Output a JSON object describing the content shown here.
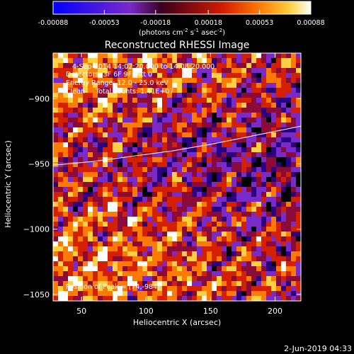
{
  "chart_data": {
    "type": "heatmap",
    "title": "Reconstructed RHESSI Image",
    "xlabel": "Heliocentric X (arcsec)",
    "ylabel": "Heliocentric Y (arcsec)",
    "xlim": [
      28,
      220
    ],
    "ylim": [
      -1055,
      -865
    ],
    "xticks": [
      50,
      100,
      150,
      200
    ],
    "yticks": [
      -900,
      -950,
      -1000,
      -1050
    ],
    "colorbar": {
      "min": -0.00088,
      "max": 0.00088,
      "tick_values": [
        -0.00088,
        -0.00053,
        -0.00018,
        0.00018,
        0.00053,
        0.00088
      ],
      "tick_labels": [
        "-0.00088",
        "-0.00053",
        "-0.00018",
        "0.00018",
        "0.00053",
        "0.00088"
      ],
      "unit_prefix": "(photons cm",
      "unit_exp1": "-2",
      "unit_mid": " s",
      "unit_exp2": "-1",
      "unit_mid2": " asec",
      "unit_exp3": "-2",
      "unit_suffix": ")"
    },
    "annotations": {
      "time_range": "4-Sep-2014 14:02:20.000 to 14:08:20.000",
      "detectors": "Detectors: 3F 6F 9F, Att 0",
      "energy": "Energy Range: 12.0 - 25.0 keV",
      "method": "Clean     Total counts: 1.41E+07",
      "peak": "Position of Peak = [74,-984]"
    },
    "limb_curve": {
      "x": [
        28,
        60,
        90,
        120,
        150,
        180,
        200,
        220
      ],
      "y": [
        -951,
        -948,
        -944,
        -940,
        -935,
        -929,
        -925,
        -921
      ]
    },
    "peak_position": [
      74,
      -984
    ],
    "colormap": [
      "#000000",
      "#2a0080",
      "#7a2ac8",
      "#8a0a3a",
      "#d42000",
      "#ff7a00",
      "#ffd040",
      "#ffffff"
    ]
  },
  "footer": {
    "date": "2-Jun-2019 04:33"
  }
}
